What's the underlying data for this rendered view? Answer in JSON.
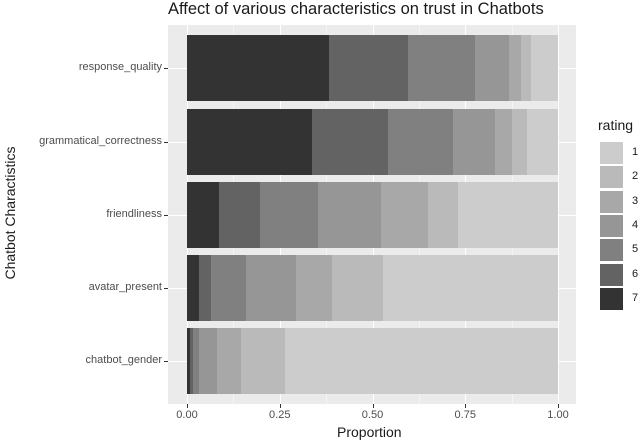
{
  "chart_data": {
    "type": "bar",
    "orientation": "horizontal",
    "stacked": "fill",
    "title": "Affect of various characteristics on trust in Chatbots",
    "xlabel": "Proportion",
    "ylabel": "Chatbot Charactistics",
    "xlim": [
      0,
      1
    ],
    "xticks": [
      "0.00",
      "0.25",
      "0.50",
      "0.75",
      "1.00"
    ],
    "grid": true,
    "legend": {
      "title": "rating",
      "position": "right",
      "entries": [
        "1",
        "2",
        "3",
        "4",
        "5",
        "6",
        "7"
      ]
    },
    "categories": [
      "response_quality",
      "grammatical_correctness",
      "friendliness",
      "avatar_present",
      "chatbot_gender"
    ],
    "series": [
      {
        "name": "7",
        "color": "#333333",
        "values": [
          0.383,
          0.337,
          0.086,
          0.032,
          0.008
        ]
      },
      {
        "name": "6",
        "color": "#636363",
        "values": [
          0.213,
          0.205,
          0.111,
          0.033,
          0.008
        ]
      },
      {
        "name": "5",
        "color": "#808080",
        "values": [
          0.18,
          0.175,
          0.156,
          0.094,
          0.016
        ]
      },
      {
        "name": "4",
        "color": "#969696",
        "values": [
          0.092,
          0.113,
          0.17,
          0.135,
          0.049
        ]
      },
      {
        "name": "3",
        "color": "#a8a8a8",
        "values": [
          0.032,
          0.046,
          0.127,
          0.097,
          0.065
        ]
      },
      {
        "name": "2",
        "color": "#bababa",
        "values": [
          0.027,
          0.04,
          0.08,
          0.137,
          0.118
        ]
      },
      {
        "name": "1",
        "color": "#cccccc",
        "values": [
          0.073,
          0.084,
          0.27,
          0.472,
          0.736
        ]
      }
    ]
  }
}
